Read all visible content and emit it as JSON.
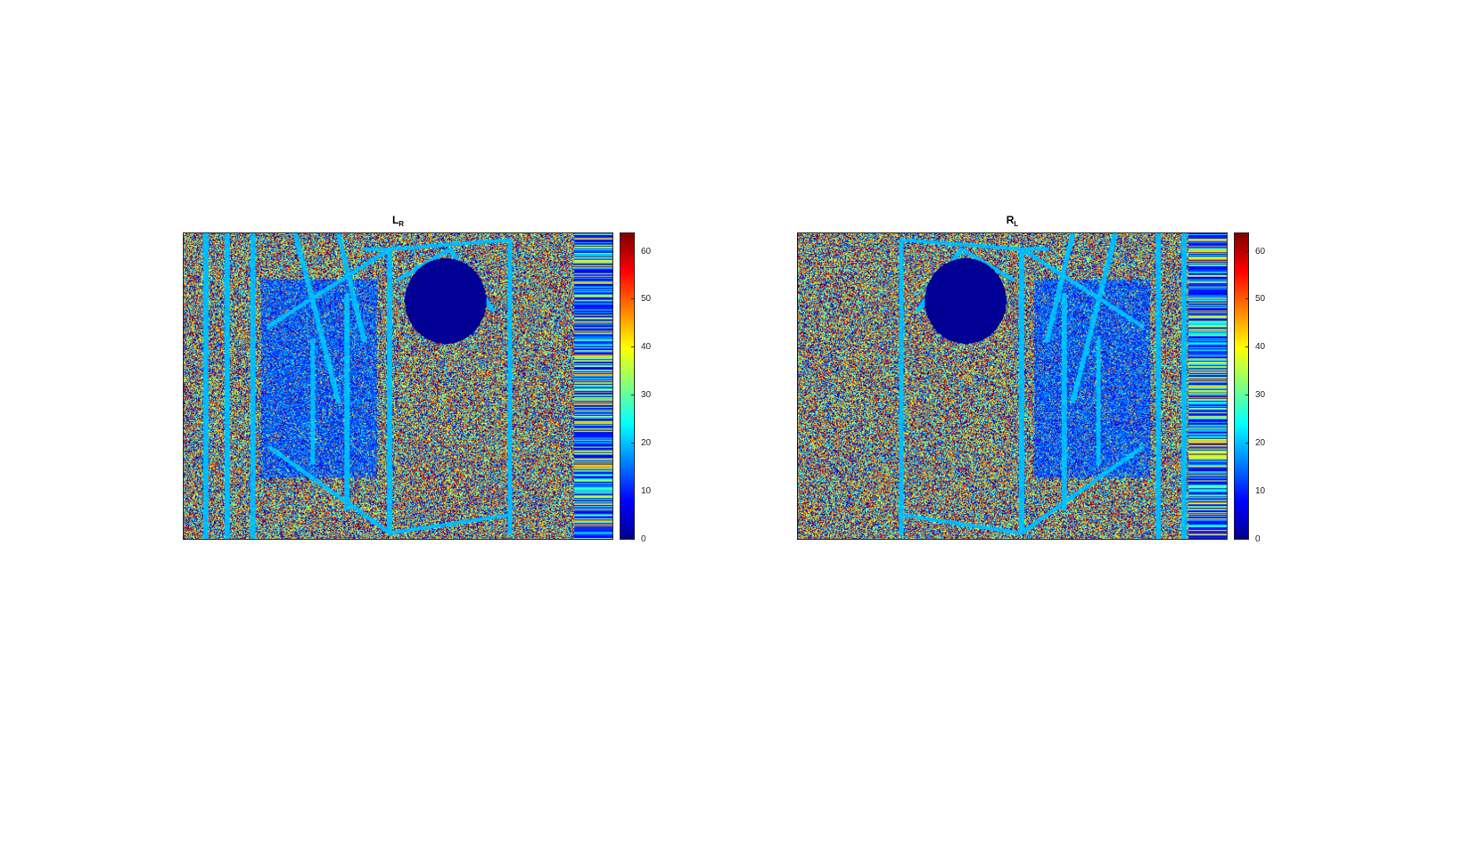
{
  "figure": {
    "panels": [
      {
        "title_main": "L",
        "title_sub": "R"
      },
      {
        "title_main": "R",
        "title_sub": "L"
      }
    ]
  },
  "colors": {
    "background": "#ffffff",
    "colormap": "jet",
    "axes_edge": "#262626"
  },
  "chart_data": [
    {
      "type": "heatmap",
      "title": "L_R",
      "colormap": "jet",
      "clim": [
        0,
        64
      ],
      "colorbar_ticks": [
        0,
        10,
        20,
        30,
        40,
        50,
        60
      ],
      "grid": false,
      "legend": "colorbar-right"
    },
    {
      "type": "heatmap",
      "title": "R_L",
      "colormap": "jet",
      "clim": [
        0,
        64
      ],
      "colorbar_ticks": [
        0,
        10,
        20,
        30,
        40,
        50,
        60
      ],
      "grid": false,
      "legend": "colorbar-right"
    }
  ]
}
